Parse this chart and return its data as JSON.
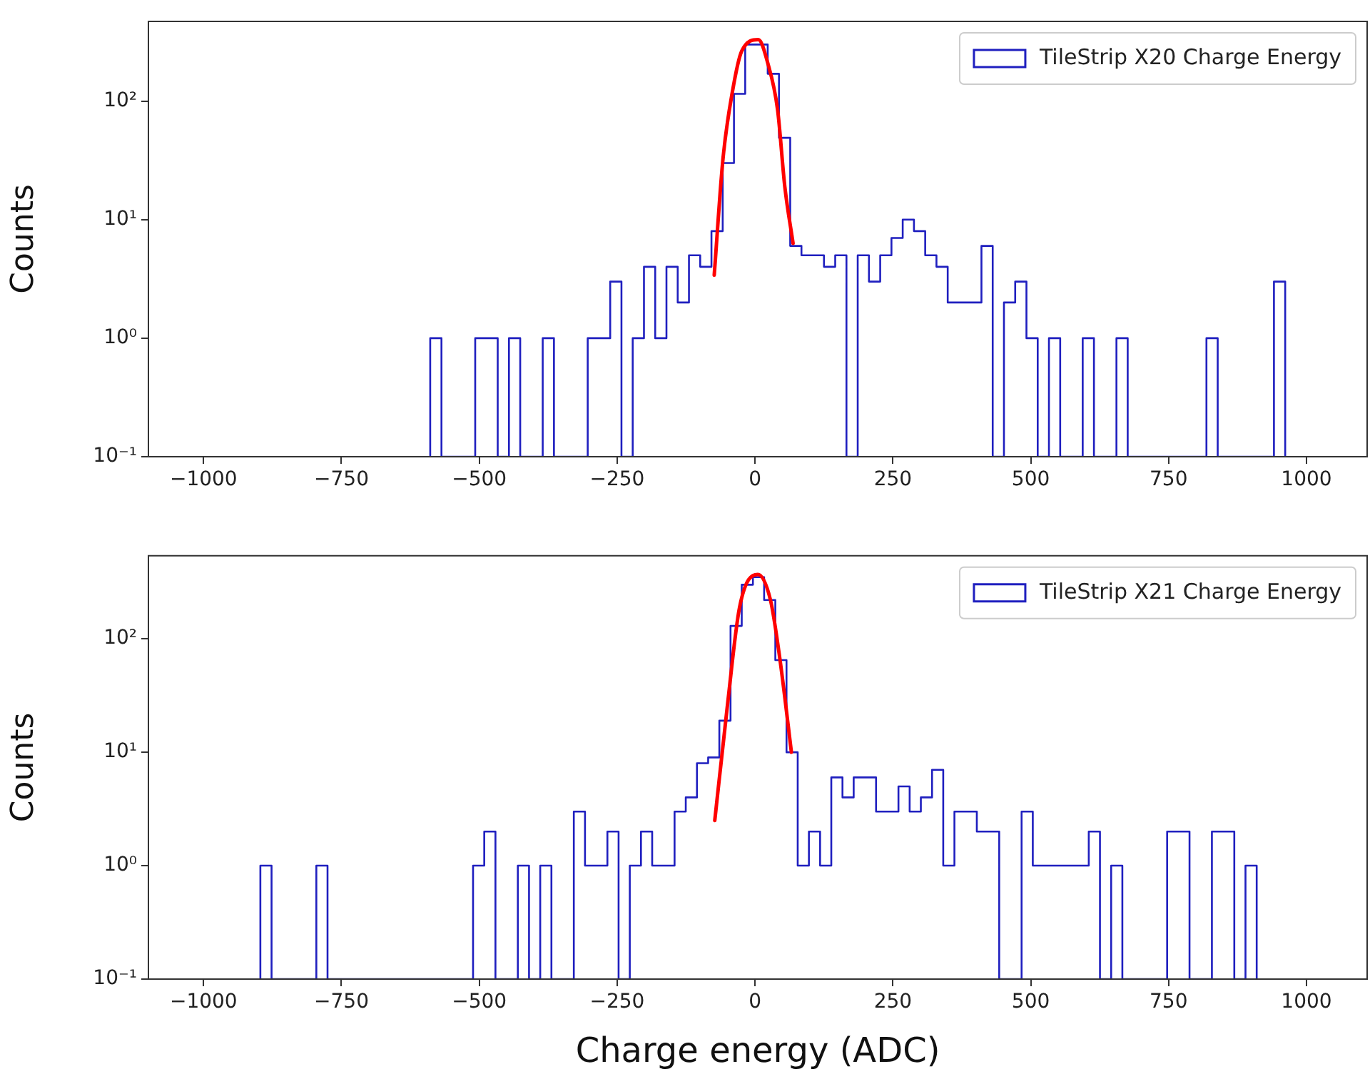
{
  "chart_data": [
    {
      "type": "histogram",
      "ylabel": "Counts",
      "log": true,
      "legend": "top right",
      "xlim": [
        -1100,
        1110
      ],
      "ylim": [
        0.1,
        470
      ],
      "xticks": [
        {
          "value": -1000,
          "label": "−1000"
        },
        {
          "value": -750,
          "label": "−750"
        },
        {
          "value": -500,
          "label": "−500"
        },
        {
          "value": -250,
          "label": "−250"
        },
        0,
        250,
        500,
        750,
        1000
      ],
      "yticks": [
        {
          "value": 0.1,
          "label": "10⁻¹"
        },
        {
          "value": 1,
          "label": "10⁰"
        },
        {
          "value": 10,
          "label": "10¹"
        },
        {
          "value": 100,
          "label": "10²"
        }
      ],
      "series": [
        {
          "name": "TileStrip X20 Charge Energy",
          "color": "#1f1fbf",
          "bins": [
            -589,
            -568.6,
            -548.2,
            -527.8,
            -507.4,
            -487,
            -466.6,
            -446.2,
            -425.8,
            -405.4,
            -385,
            -364.6,
            -344.2,
            -323.8,
            -303.4,
            -283,
            -262.6,
            -242.2,
            -221.8,
            -201.4,
            -181,
            -160.6,
            -140.2,
            -119.8,
            -99.4,
            -79,
            -58.6,
            -38.2,
            -17.8,
            2.6,
            23,
            43.4,
            63.8,
            84.2,
            104.6,
            125,
            145.4,
            165.8,
            186.2,
            206.6,
            227,
            247.4,
            267.8,
            288.2,
            308.6,
            329,
            349.4,
            369.8,
            390.2,
            410.6,
            431,
            451.4,
            471.8,
            492.2,
            512.6,
            533,
            553.4,
            573.8,
            594.2,
            614.6,
            635,
            655.4,
            675.8,
            696.2,
            716.6,
            737,
            757.4,
            777.8,
            798.2,
            818.6,
            839,
            859.4,
            879.8,
            900.2,
            920.6,
            941,
            961.4
          ],
          "values": [
            1,
            null,
            null,
            null,
            1,
            1,
            null,
            1,
            null,
            null,
            1,
            null,
            null,
            null,
            1,
            1,
            3,
            null,
            1,
            4,
            1,
            4,
            2,
            5,
            4,
            8,
            30,
            115,
            300,
            300,
            170,
            49,
            6,
            5,
            5,
            4,
            5,
            null,
            5,
            3,
            5,
            7,
            10,
            8,
            5,
            4,
            2,
            2,
            2,
            6,
            null,
            2,
            3,
            1,
            null,
            1,
            null,
            null,
            1,
            null,
            null,
            1,
            null,
            null,
            null,
            null,
            null,
            null,
            null,
            1,
            null,
            null,
            null,
            null,
            null,
            3
          ]
        },
        {
          "type": "line",
          "color": "#ff0000",
          "x": [
            -74,
            -58,
            -41,
            -24,
            6,
            23,
            41,
            54,
            69
          ],
          "values": [
            3.4,
            33,
            120,
            265,
            330,
            210,
            84,
            19,
            6.3
          ]
        }
      ]
    },
    {
      "type": "histogram",
      "ylabel": "Counts",
      "xlabel": "Charge energy (ADC)",
      "log": true,
      "legend": "top right",
      "xlim": [
        -1100,
        1110
      ],
      "ylim": [
        0.1,
        540
      ],
      "xticks": [
        {
          "value": -1000,
          "label": "−1000"
        },
        {
          "value": -750,
          "label": "−750"
        },
        {
          "value": -500,
          "label": "−500"
        },
        {
          "value": -250,
          "label": "−250"
        },
        0,
        250,
        500,
        750,
        1000
      ],
      "yticks": [
        {
          "value": 0.1,
          "label": "10⁻¹"
        },
        {
          "value": 1,
          "label": "10⁰"
        },
        {
          "value": 10,
          "label": "10¹"
        },
        {
          "value": 100,
          "label": "10²"
        }
      ],
      "series": [
        {
          "name": "TileStrip X21 Charge Energy",
          "color": "#1f1fbf",
          "bins": [
            -897,
            -876.7,
            -856.4,
            -836.1,
            -815.8,
            -795.5,
            -775.2,
            -754.9,
            -734.6,
            -714.3,
            -694,
            -673.7,
            -653.4,
            -633.1,
            -612.8,
            -592.5,
            -572.2,
            -551.9,
            -531.6,
            -511.3,
            -491,
            -470.7,
            -450.4,
            -430.1,
            -409.8,
            -389.5,
            -369.2,
            -348.9,
            -328.6,
            -308.3,
            -288,
            -267.7,
            -247.4,
            -227.1,
            -206.8,
            -186.5,
            -166.2,
            -145.9,
            -125.6,
            -105.3,
            -85,
            -64.7,
            -44.4,
            -24.1,
            -3.8,
            16.5,
            36.8,
            57.1,
            77.4,
            97.7,
            118,
            138.3,
            158.6,
            178.9,
            199.2,
            219.5,
            239.8,
            260.1,
            280.4,
            300.7,
            321,
            341.3,
            361.6,
            381.9,
            402.2,
            422.5,
            442.8,
            463.1,
            483.4,
            503.7,
            524,
            544.3,
            564.6,
            584.9,
            605.2,
            625.5,
            645.8,
            666.1,
            686.4,
            706.7,
            727,
            747.3,
            767.6,
            787.9,
            808.2,
            828.5,
            848.8,
            869.1,
            889.4,
            909.7
          ],
          "values": [
            1,
            null,
            null,
            null,
            null,
            1,
            null,
            null,
            null,
            null,
            null,
            null,
            null,
            null,
            null,
            null,
            null,
            null,
            null,
            1,
            2,
            null,
            null,
            1,
            null,
            1,
            null,
            null,
            3,
            1,
            1,
            2,
            null,
            1,
            2,
            1,
            1,
            3,
            4,
            8,
            9,
            19,
            130,
            300,
            350,
            220,
            65,
            10,
            1,
            2,
            1,
            6,
            4,
            6,
            6,
            3,
            3,
            5,
            3,
            4,
            7,
            1,
            3,
            3,
            2,
            2,
            null,
            null,
            3,
            1,
            1,
            1,
            1,
            1,
            2,
            null,
            1,
            null,
            null,
            null,
            null,
            2,
            2,
            null,
            null,
            2,
            2,
            null,
            1
          ]
        },
        {
          "type": "line",
          "color": "#ff0000",
          "x": [
            -73,
            -50,
            -28,
            5,
            28,
            45,
            66
          ],
          "values": [
            2.5,
            26,
            190,
            370,
            220,
            67,
            10
          ]
        }
      ]
    }
  ]
}
